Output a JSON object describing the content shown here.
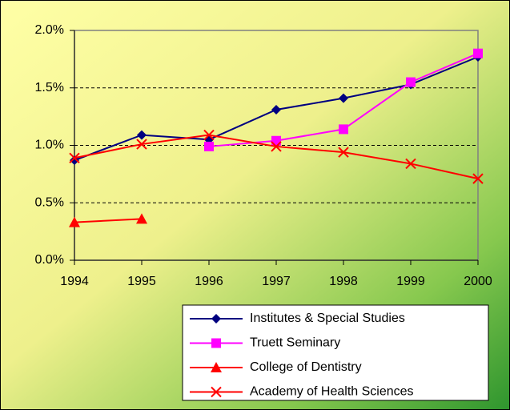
{
  "chart_data": {
    "type": "line",
    "categories": [
      "1994",
      "1995",
      "1996",
      "1997",
      "1998",
      "1999",
      "2000"
    ],
    "series": [
      {
        "name": "Institutes & Special Studies",
        "color": "#000080",
        "marker": "diamond",
        "values": [
          0.87,
          1.09,
          1.05,
          1.31,
          1.41,
          1.53,
          1.77
        ]
      },
      {
        "name": "Truett Seminary",
        "color": "#ff00ff",
        "marker": "square",
        "values": [
          null,
          null,
          0.99,
          1.04,
          1.14,
          1.55,
          1.8
        ]
      },
      {
        "name": "College of Dentistry",
        "color": "#ff0000",
        "marker": "triangle",
        "values": [
          0.33,
          0.36,
          null,
          null,
          null,
          null,
          null
        ]
      },
      {
        "name": "Academy of Health Sciences",
        "color": "#ff0000",
        "marker": "x",
        "values": [
          0.89,
          1.01,
          1.09,
          0.99,
          0.94,
          0.84,
          0.71
        ]
      }
    ],
    "ylim": [
      0,
      2
    ],
    "yticks": [
      {
        "value": 0,
        "label": "0.0%"
      },
      {
        "value": 0.5,
        "label": "0.5%"
      },
      {
        "value": 1,
        "label": "1.0%"
      },
      {
        "value": 1.5,
        "label": "1.5%"
      },
      {
        "value": 2,
        "label": "2.0%"
      }
    ],
    "grid": true,
    "legend": "bottom-right"
  }
}
